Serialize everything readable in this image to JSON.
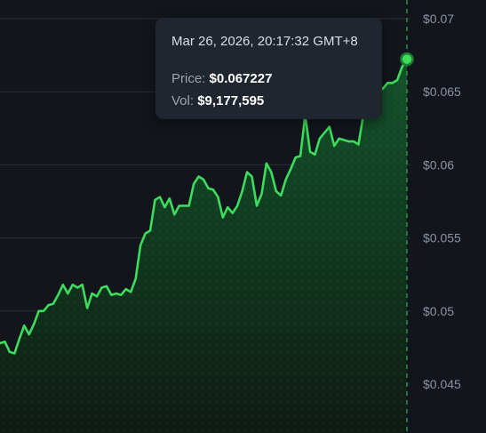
{
  "colors": {
    "background": "#12161c",
    "line": "#3ddc5c",
    "area_top": "#145a2c",
    "area_bottom": "#0f1a14",
    "grid": "#2a2f37",
    "cursor": "#2fae4d",
    "tick_text": "#8a93a0"
  },
  "tooltip": {
    "timestamp": "Mar 26, 2026, 20:17:32 GMT+8",
    "price_label": "Price:",
    "price_value": "$0.067227",
    "vol_label": "Vol:",
    "vol_value": "$9,177,595"
  },
  "chart_data": {
    "type": "area",
    "ylim": [
      0.042,
      0.0709
    ],
    "y_ticks": [
      {
        "value": 0.07,
        "label": "$0.07"
      },
      {
        "value": 0.065,
        "label": "$0.065"
      },
      {
        "value": 0.06,
        "label": "$0.06"
      },
      {
        "value": 0.055,
        "label": "$0.055"
      },
      {
        "value": 0.05,
        "label": "$0.05"
      },
      {
        "value": 0.045,
        "label": "$0.045"
      }
    ],
    "grid": true,
    "series": [
      {
        "values": [
          0.0478,
          0.0479,
          0.0472,
          0.0471,
          0.0481,
          0.049,
          0.0484,
          0.0491,
          0.05,
          0.05,
          0.0504,
          0.0505,
          0.0511,
          0.0518,
          0.0512,
          0.0518,
          0.0516,
          0.0518,
          0.0502,
          0.0512,
          0.051,
          0.0516,
          0.0517,
          0.0511,
          0.0512,
          0.0511,
          0.0515,
          0.0513,
          0.0522,
          0.0545,
          0.0553,
          0.0555,
          0.0576,
          0.0578,
          0.0571,
          0.0577,
          0.0566,
          0.0572,
          0.0572,
          0.0572,
          0.0587,
          0.0592,
          0.059,
          0.0584,
          0.0583,
          0.0578,
          0.0564,
          0.0571,
          0.0567,
          0.0572,
          0.0582,
          0.0595,
          0.0592,
          0.0572,
          0.058,
          0.0601,
          0.0595,
          0.0582,
          0.0579,
          0.059,
          0.0597,
          0.0605,
          0.0606,
          0.0634,
          0.0609,
          0.0607,
          0.0618,
          0.0622,
          0.0626,
          0.0613,
          0.0618,
          0.0617,
          0.0616,
          0.0616,
          0.0614,
          0.0634,
          0.0645,
          0.0648,
          0.0654,
          0.0652,
          0.0656,
          0.0656,
          0.0658,
          0.0667,
          0.0672
        ]
      }
    ],
    "last_price": 0.067227
  }
}
